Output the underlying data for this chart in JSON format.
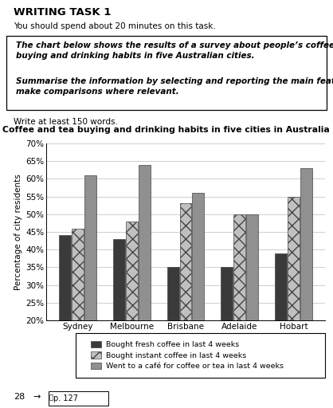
{
  "title": "Coffee and tea buying and drinking habits in five cities in Australia",
  "cities": [
    "Sydney",
    "Melbourne",
    "Brisbane",
    "Adelaide",
    "Hobart"
  ],
  "series": [
    {
      "label": "Bought fresh coffee in last 4 weeks",
      "values": [
        44,
        43,
        35,
        35,
        39
      ],
      "color": "#3a3a3a",
      "hatch": null
    },
    {
      "label": "Bought instant coffee in last 4 weeks",
      "values": [
        46,
        48,
        53,
        50,
        55
      ],
      "color": "#c0c0c0",
      "hatch": "xx"
    },
    {
      "label": "Went to a café for coffee or tea in last 4 weeks",
      "values": [
        61,
        64,
        56,
        50,
        63
      ],
      "color": "#909090",
      "hatch": null
    }
  ],
  "ylabel": "Percentage of city residents",
  "ylim": [
    20,
    70
  ],
  "yticks": [
    20,
    25,
    30,
    35,
    40,
    45,
    50,
    55,
    60,
    65,
    70
  ],
  "ytick_labels": [
    "20%",
    "25%",
    "30%",
    "35%",
    "40%",
    "45%",
    "50%",
    "55%",
    "60%",
    "65%",
    "70%"
  ],
  "bar_width": 0.22,
  "header_bold": "WRITING TASK 1",
  "subtext1": "You should spend about 20 minutes on this task.",
  "box_text1": "The chart below shows the results of a survey about people’s coffee and tea\nbuying and drinking habits in five Australian cities.",
  "box_text2": "Summarise the information by selecting and reporting the main features, and\nmake comparisons where relevant.",
  "footer_text": "Write at least 150 words.",
  "page_text": "28",
  "page_ref": "→ p. 127",
  "background_color": "#ffffff",
  "grid_color": "#bbbbbb",
  "text_color": "#000000"
}
